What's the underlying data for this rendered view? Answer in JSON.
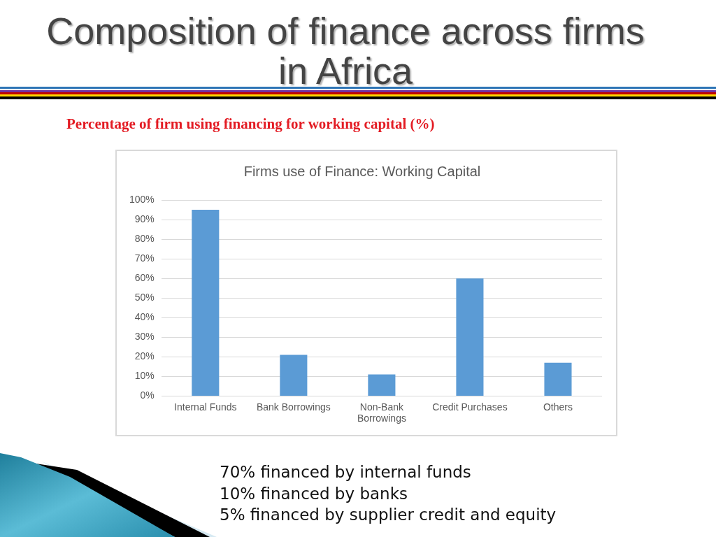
{
  "chart_data": {
    "type": "bar",
    "title": "Firms use of Finance: Working Capital",
    "subtitle": "Percentage of firm using financing for working capital (%)",
    "annotations": [
      "Composition of finance across firms in Africa",
      "70% financed by internal funds",
      "10% financed by banks",
      "5% financed by supplier credit and equity"
    ],
    "categories": [
      "Internal Funds",
      "Bank Borrowings",
      "Non-Bank Borrowings",
      "Credit Purchases",
      "Others"
    ],
    "values": [
      95,
      21,
      11,
      60,
      17
    ],
    "color": "#5b9bd5",
    "ylim": [
      0,
      100
    ],
    "yticks": [
      {
        "value": 0,
        "label": "0%"
      },
      {
        "value": 10,
        "label": "10%"
      },
      {
        "value": 20,
        "label": "20%"
      },
      {
        "value": 30,
        "label": "30%"
      },
      {
        "value": 40,
        "label": "40%"
      },
      {
        "value": 50,
        "label": "50%"
      },
      {
        "value": 60,
        "label": "60%"
      },
      {
        "value": 70,
        "label": "70%"
      },
      {
        "value": 80,
        "label": "80%"
      },
      {
        "value": 90,
        "label": "90%"
      },
      {
        "value": 100,
        "label": "100%"
      }
    ],
    "grid": "y"
  }
}
